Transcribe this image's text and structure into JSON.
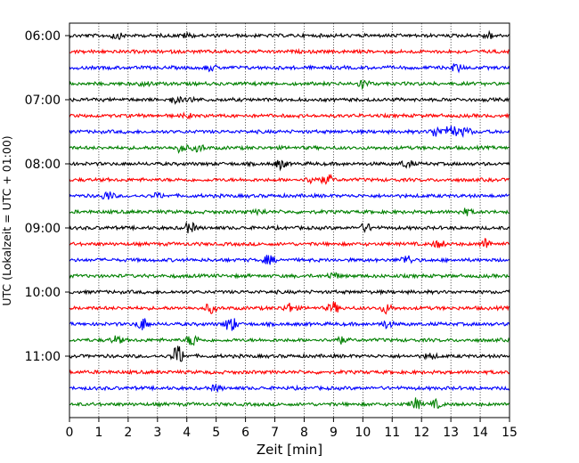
{
  "chart_data": {
    "type": "line",
    "title": "",
    "xlabel": "Zeit  [min]",
    "ylabel": "UTC (Lokalzeit = UTC + 01:00)",
    "xlim": [
      0,
      15
    ],
    "x_ticks": [
      "0",
      "1",
      "2",
      "3",
      "4",
      "5",
      "6",
      "7",
      "8",
      "9",
      "10",
      "11",
      "12",
      "13",
      "14",
      "15"
    ],
    "y_ticks": [
      "06:00",
      "07:00",
      "08:00",
      "09:00",
      "10:00",
      "11:00"
    ],
    "grid": "vertical dotted",
    "colors": [
      "#000000",
      "#ff0000",
      "#0000ff",
      "#008000"
    ],
    "traces": [
      {
        "start": "06:00",
        "color": "#000000",
        "events": [
          [
            1.6,
            0.7
          ],
          [
            4.0,
            0.5
          ],
          [
            14.3,
            0.7
          ]
        ]
      },
      {
        "start": "06:15",
        "color": "#ff0000",
        "events": []
      },
      {
        "start": "06:30",
        "color": "#0000ff",
        "events": [
          [
            4.8,
            0.6
          ],
          [
            13.2,
            0.9
          ]
        ]
      },
      {
        "start": "06:45",
        "color": "#008000",
        "events": [
          [
            10.0,
            1.0
          ],
          [
            2.6,
            0.5
          ]
        ]
      },
      {
        "start": "07:00",
        "color": "#000000",
        "events": [
          [
            3.6,
            0.8
          ],
          [
            4.2,
            0.4
          ]
        ]
      },
      {
        "start": "07:15",
        "color": "#ff0000",
        "events": [
          [
            4.0,
            0.4
          ]
        ]
      },
      {
        "start": "07:30",
        "color": "#0000ff",
        "events": [
          [
            12.5,
            1.2
          ],
          [
            13.0,
            1.8
          ],
          [
            13.5,
            1.0
          ]
        ]
      },
      {
        "start": "07:45",
        "color": "#008000",
        "events": [
          [
            3.8,
            1.0
          ],
          [
            4.4,
            0.8
          ]
        ]
      },
      {
        "start": "08:00",
        "color": "#000000",
        "events": [
          [
            7.2,
            1.0
          ],
          [
            11.5,
            0.8
          ]
        ]
      },
      {
        "start": "08:15",
        "color": "#ff0000",
        "events": [
          [
            8.3,
            1.0
          ],
          [
            8.8,
            1.0
          ]
        ]
      },
      {
        "start": "08:30",
        "color": "#0000ff",
        "events": [
          [
            1.3,
            1.0
          ],
          [
            3.0,
            0.5
          ]
        ]
      },
      {
        "start": "08:45",
        "color": "#008000",
        "events": [
          [
            6.5,
            0.5
          ],
          [
            13.5,
            0.7
          ]
        ]
      },
      {
        "start": "09:00",
        "color": "#000000",
        "events": [
          [
            4.1,
            1.2
          ],
          [
            10.1,
            0.9
          ]
        ]
      },
      {
        "start": "09:15",
        "color": "#ff0000",
        "events": [
          [
            12.6,
            0.8
          ],
          [
            14.2,
            1.1
          ]
        ]
      },
      {
        "start": "09:30",
        "color": "#0000ff",
        "events": [
          [
            6.8,
            1.0
          ],
          [
            11.5,
            1.1
          ]
        ]
      },
      {
        "start": "09:45",
        "color": "#008000",
        "events": [
          [
            9.0,
            0.7
          ]
        ]
      },
      {
        "start": "10:00",
        "color": "#000000",
        "events": []
      },
      {
        "start": "10:15",
        "color": "#ff0000",
        "events": [
          [
            4.8,
            1.0
          ],
          [
            7.5,
            1.0
          ],
          [
            9.0,
            1.2
          ],
          [
            10.8,
            1.0
          ]
        ]
      },
      {
        "start": "10:30",
        "color": "#0000ff",
        "events": [
          [
            2.5,
            1.4
          ],
          [
            5.5,
            1.8
          ],
          [
            10.8,
            0.8
          ]
        ]
      },
      {
        "start": "10:45",
        "color": "#008000",
        "events": [
          [
            1.6,
            0.8
          ],
          [
            4.2,
            1.4
          ],
          [
            9.2,
            0.8
          ]
        ]
      },
      {
        "start": "11:00",
        "color": "#000000",
        "events": [
          [
            3.7,
            2.4
          ],
          [
            12.3,
            0.6
          ]
        ]
      },
      {
        "start": "11:15",
        "color": "#ff0000",
        "events": []
      },
      {
        "start": "11:30",
        "color": "#0000ff",
        "events": [
          [
            5.0,
            0.6
          ]
        ]
      },
      {
        "start": "11:45",
        "color": "#008000",
        "events": [
          [
            11.8,
            1.2
          ],
          [
            12.5,
            0.8
          ]
        ]
      }
    ]
  }
}
